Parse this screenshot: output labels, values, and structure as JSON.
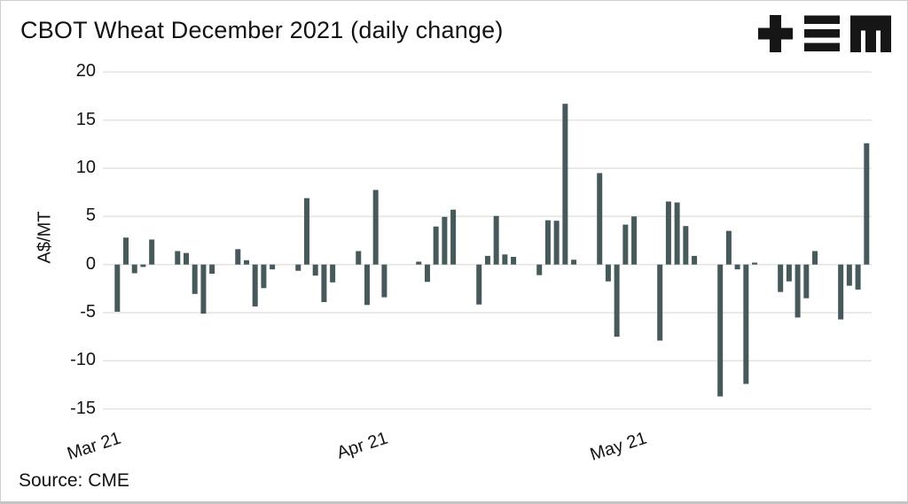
{
  "header": {
    "logo_icon": "tem-logo",
    "logo_parts": [
      "plus-icon",
      "triple-bar-icon",
      "m-icon"
    ]
  },
  "footer": {
    "source": "Source: CME"
  },
  "chart_data": {
    "type": "bar",
    "title": "CBOT Wheat December 2021 (daily change)",
    "xlabel": "",
    "ylabel": "A$/MT",
    "ylim": [
      -15,
      20
    ],
    "y_ticks": [
      20,
      15,
      10,
      5,
      0,
      -5,
      -10,
      -15
    ],
    "grid": "horizontal gridlines only",
    "legend": "none",
    "bar_color": "#465a5c",
    "gridline_color": "#e5e4e2",
    "x_axis_type": "date",
    "x_start_date": "2021-03-01",
    "x_end_date": "2021-05-27",
    "x_tick_labels": [
      "Mar 21",
      "Apr 21",
      "May 21"
    ],
    "x_tick_dates": [
      "2021-03-01",
      "2021-04-01",
      "2021-05-01"
    ],
    "series": [
      {
        "name": "CBOT Wheat Dec 2021 daily change (A$/MT)",
        "points": [
          {
            "date": "2021-03-01",
            "value": -4.9
          },
          {
            "date": "2021-03-02",
            "value": 2.8
          },
          {
            "date": "2021-03-03",
            "value": -0.9
          },
          {
            "date": "2021-03-04",
            "value": -0.25
          },
          {
            "date": "2021-03-05",
            "value": 2.6
          },
          {
            "date": "2021-03-08",
            "value": 1.4
          },
          {
            "date": "2021-03-09",
            "value": 1.2
          },
          {
            "date": "2021-03-10",
            "value": -3.05
          },
          {
            "date": "2021-03-11",
            "value": -5.1
          },
          {
            "date": "2021-03-12",
            "value": -0.95
          },
          {
            "date": "2021-03-15",
            "value": 1.6
          },
          {
            "date": "2021-03-16",
            "value": 0.45
          },
          {
            "date": "2021-03-17",
            "value": -4.35
          },
          {
            "date": "2021-03-18",
            "value": -2.45
          },
          {
            "date": "2021-03-19",
            "value": -0.5
          },
          {
            "date": "2021-03-22",
            "value": -0.65
          },
          {
            "date": "2021-03-23",
            "value": 6.9
          },
          {
            "date": "2021-03-24",
            "value": -1.15
          },
          {
            "date": "2021-03-25",
            "value": -3.9
          },
          {
            "date": "2021-03-26",
            "value": -1.85
          },
          {
            "date": "2021-03-29",
            "value": 1.4
          },
          {
            "date": "2021-03-30",
            "value": -4.2
          },
          {
            "date": "2021-03-31",
            "value": 7.75
          },
          {
            "date": "2021-04-01",
            "value": -3.4
          },
          {
            "date": "2021-04-05",
            "value": 0.3
          },
          {
            "date": "2021-04-06",
            "value": -1.8
          },
          {
            "date": "2021-04-07",
            "value": 3.95
          },
          {
            "date": "2021-04-08",
            "value": 4.95
          },
          {
            "date": "2021-04-09",
            "value": 5.7
          },
          {
            "date": "2021-04-12",
            "value": -4.15
          },
          {
            "date": "2021-04-13",
            "value": 0.9
          },
          {
            "date": "2021-04-14",
            "value": 5.05
          },
          {
            "date": "2021-04-15",
            "value": 1.05
          },
          {
            "date": "2021-04-16",
            "value": 0.8
          },
          {
            "date": "2021-04-19",
            "value": -1.1
          },
          {
            "date": "2021-04-20",
            "value": 4.6
          },
          {
            "date": "2021-04-21",
            "value": 4.55
          },
          {
            "date": "2021-04-22",
            "value": 16.7
          },
          {
            "date": "2021-04-23",
            "value": 0.5
          },
          {
            "date": "2021-04-26",
            "value": 9.5
          },
          {
            "date": "2021-04-27",
            "value": -1.75
          },
          {
            "date": "2021-04-28",
            "value": -7.5
          },
          {
            "date": "2021-04-29",
            "value": 4.15
          },
          {
            "date": "2021-04-30",
            "value": 5.0
          },
          {
            "date": "2021-05-03",
            "value": -7.9
          },
          {
            "date": "2021-05-04",
            "value": 6.55
          },
          {
            "date": "2021-05-05",
            "value": 6.45
          },
          {
            "date": "2021-05-06",
            "value": 4.0
          },
          {
            "date": "2021-05-07",
            "value": 0.9
          },
          {
            "date": "2021-05-10",
            "value": -13.7
          },
          {
            "date": "2021-05-11",
            "value": 3.5
          },
          {
            "date": "2021-05-12",
            "value": -0.5
          },
          {
            "date": "2021-05-13",
            "value": -12.4
          },
          {
            "date": "2021-05-14",
            "value": 0.2
          },
          {
            "date": "2021-05-17",
            "value": -2.85
          },
          {
            "date": "2021-05-18",
            "value": -1.75
          },
          {
            "date": "2021-05-19",
            "value": -5.5
          },
          {
            "date": "2021-05-20",
            "value": -3.5
          },
          {
            "date": "2021-05-21",
            "value": 1.4
          },
          {
            "date": "2021-05-24",
            "value": -5.7
          },
          {
            "date": "2021-05-25",
            "value": -2.2
          },
          {
            "date": "2021-05-26",
            "value": -2.6
          },
          {
            "date": "2021-05-27",
            "value": 12.6
          }
        ]
      }
    ]
  }
}
